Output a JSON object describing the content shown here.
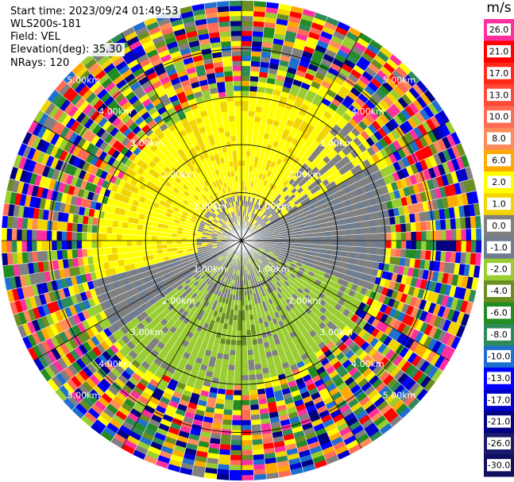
{
  "header": {
    "start_time": "Start time: 2023/09/24 01:49:53",
    "instrument": "WLS200s-181",
    "field": "Field: VEL",
    "elevation": "Elevation(deg): 35.30",
    "nrays": "NRays: 120"
  },
  "chart_data": {
    "type": "heatmap",
    "projection": "polar-ppi",
    "title": "",
    "nrays": 120,
    "range_ring_labels": [
      "1.00km",
      "2.00km",
      "3.00km",
      "4.00km",
      "5.00km"
    ],
    "range_rings_km": [
      1,
      2,
      3,
      4,
      5
    ],
    "max_range_km": 5.0,
    "spoke_angles_deg": [
      0,
      30,
      60,
      90,
      120,
      150,
      180,
      210,
      240,
      270,
      300,
      330
    ],
    "colorbar": {
      "unit": "m/s",
      "tick_labels": [
        "26.0",
        "21.0",
        "17.0",
        "13.0",
        "10.0",
        "8.0",
        "6.0",
        "2.0",
        "1.0",
        "0.0",
        "-1.0",
        "-2.0",
        "-4.0",
        "-6.0",
        "-8.0",
        "-10.0",
        "-13.0",
        "-17.0",
        "-21.0",
        "-26.0",
        "-30.0"
      ],
      "colors": [
        "#ff2fa0",
        "#ff0000",
        "#ff2a1a",
        "#ff4a3a",
        "#ff6b55",
        "#ff8a5a",
        "#ffaa00",
        "#ffff00",
        "#f2d400",
        "#808080",
        "#6f7d8f",
        "#9acd32",
        "#6b8e23",
        "#228b22",
        "#2e8b57",
        "#1e6fd0",
        "#0000ff",
        "#0000cd",
        "#000080",
        "#1a1a6e",
        "#101060"
      ]
    },
    "velocity_field_description_free": true
  }
}
